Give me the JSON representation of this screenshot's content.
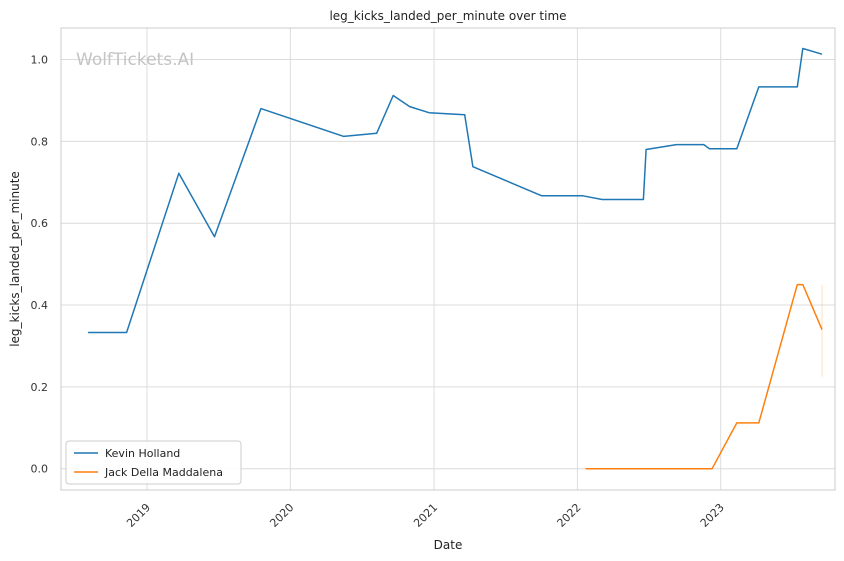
{
  "chart_data": {
    "type": "line",
    "title": "leg_kicks_landed_per_minute over time",
    "xlabel": "Date",
    "ylabel": "leg_kicks_landed_per_minute",
    "watermark": "WolfTickets.AI",
    "x_ticks": [
      "2019",
      "2020",
      "2021",
      "2022",
      "2023"
    ],
    "y_ticks": [
      "0.0",
      "0.2",
      "0.4",
      "0.6",
      "0.8",
      "1.0"
    ],
    "xlim": [
      "2018-05-27",
      "2023-10-19"
    ],
    "ylim": [
      -0.052,
      1.077
    ],
    "grid": true,
    "legend_position": "lower-left",
    "series": [
      {
        "name": "Kevin Holland",
        "color": "#1f77b4",
        "points": [
          [
            "2018-08-04",
            0.333
          ],
          [
            "2018-11-10",
            0.333
          ],
          [
            "2019-03-23",
            0.722
          ],
          [
            "2019-06-22",
            0.567
          ],
          [
            "2019-10-18",
            0.88
          ],
          [
            "2020-05-16",
            0.812
          ],
          [
            "2020-08-08",
            0.82
          ],
          [
            "2020-09-19",
            0.912
          ],
          [
            "2020-10-31",
            0.885
          ],
          [
            "2020-12-19",
            0.87
          ],
          [
            "2021-03-20",
            0.865
          ],
          [
            "2021-04-10",
            0.738
          ],
          [
            "2021-10-02",
            0.667
          ],
          [
            "2022-01-15",
            0.667
          ],
          [
            "2022-03-05",
            0.658
          ],
          [
            "2022-06-18",
            0.658
          ],
          [
            "2022-06-25",
            0.78
          ],
          [
            "2022-09-10",
            0.792
          ],
          [
            "2022-11-19",
            0.792
          ],
          [
            "2022-12-03",
            0.782
          ],
          [
            "2023-02-11",
            0.782
          ],
          [
            "2023-04-08",
            0.933
          ],
          [
            "2023-07-15",
            0.933
          ],
          [
            "2023-07-29",
            1.027
          ],
          [
            "2023-09-16",
            1.013
          ]
        ]
      },
      {
        "name": "Jack Della Maddalena",
        "color": "#ff7f0e",
        "points": [
          [
            "2022-01-22",
            0.0
          ],
          [
            "2022-12-10",
            0.0
          ],
          [
            "2023-02-11",
            0.112
          ],
          [
            "2023-04-08",
            0.112
          ],
          [
            "2023-07-15",
            0.45
          ],
          [
            "2023-07-29",
            0.45
          ],
          [
            "2023-09-16",
            0.34
          ]
        ]
      }
    ]
  }
}
